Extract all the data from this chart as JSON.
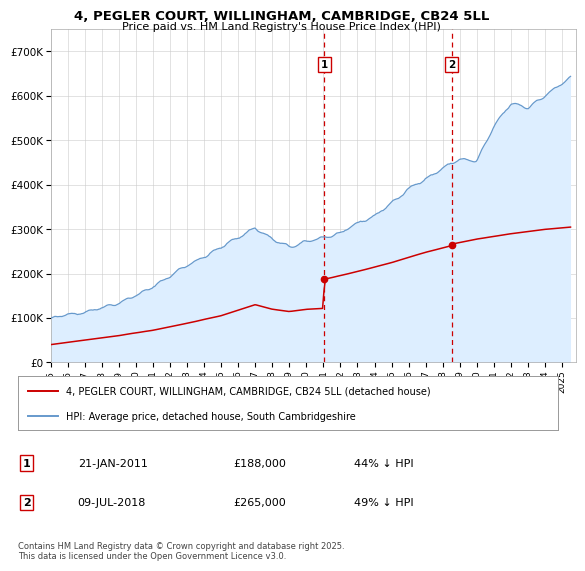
{
  "title": "4, PEGLER COURT, WILLINGHAM, CAMBRIDGE, CB24 5LL",
  "subtitle": "Price paid vs. HM Land Registry's House Price Index (HPI)",
  "ylim": [
    0,
    750000
  ],
  "xlim_start": 1995.0,
  "xlim_end": 2025.8,
  "yticks": [
    0,
    100000,
    200000,
    300000,
    400000,
    500000,
    600000,
    700000
  ],
  "ytick_labels": [
    "£0",
    "£100K",
    "£200K",
    "£300K",
    "£400K",
    "£500K",
    "£600K",
    "£700K"
  ],
  "transaction1_date": 2011.06,
  "transaction1_price": 188000,
  "transaction2_date": 2018.52,
  "transaction2_price": 265000,
  "legend_line1": "4, PEGLER COURT, WILLINGHAM, CAMBRIDGE, CB24 5LL (detached house)",
  "legend_line2": "HPI: Average price, detached house, South Cambridgeshire",
  "footer": "Contains HM Land Registry data © Crown copyright and database right 2025.\nThis data is licensed under the Open Government Licence v3.0.",
  "hpi_color": "#6699cc",
  "price_color": "#cc0000",
  "vline_color": "#cc0000",
  "background_color": "#ffffff",
  "grid_color": "#cccccc"
}
